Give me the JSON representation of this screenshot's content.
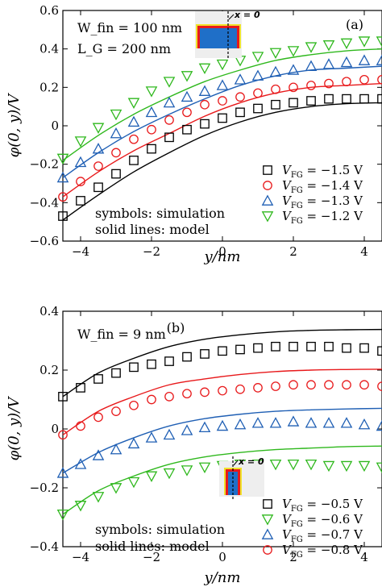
{
  "chart_data": [
    {
      "type": "line",
      "panel": "(a)",
      "annotations": {
        "line1": "W_fin = 100 nm",
        "line2": "L_G = 200 nm",
        "inset": "x = 0",
        "note1": "symbols: simulation",
        "note2": "solid lines: model"
      },
      "xlabel": "y/nm",
      "ylabel": "φ(0, y)/V",
      "xlim": [
        -4.5,
        4.5
      ],
      "ylim": [
        -0.6,
        0.6
      ],
      "xticks": [
        "−4",
        "−2",
        "0",
        "2",
        "4"
      ],
      "yticks": [
        "−0.6",
        "−0.4",
        "−0.2",
        "0",
        "0.2",
        "0.4",
        "0.6"
      ],
      "xtick_values": [
        -4,
        -2,
        0,
        2,
        4
      ],
      "ytick_values": [
        -0.6,
        -0.4,
        -0.2,
        0,
        0.2,
        0.4,
        0.6
      ],
      "series": [
        {
          "name": "V_FG = −1.5 V",
          "color": "#000000",
          "marker": "square",
          "model_y": [
            -0.49,
            -0.36,
            -0.24,
            -0.14,
            -0.05,
            0.02,
            0.07,
            0.1,
            0.115,
            0.12
          ],
          "sim_x": [
            -4.5,
            -4,
            -3.5,
            -3,
            -2.5,
            -2,
            -1.5,
            -1,
            -0.5,
            0,
            0.5,
            1,
            1.5,
            2,
            2.5,
            3,
            3.5,
            4,
            4.5
          ],
          "sim_y": [
            -0.47,
            -0.39,
            -0.32,
            -0.25,
            -0.18,
            -0.12,
            -0.06,
            -0.02,
            0.01,
            0.04,
            0.07,
            0.09,
            0.11,
            0.12,
            0.13,
            0.14,
            0.14,
            0.14,
            0.14
          ]
        },
        {
          "name": "V_FG = −1.4 V",
          "color": "#e8191b",
          "marker": "circle",
          "model_y": [
            -0.37,
            -0.24,
            -0.13,
            -0.04,
            0.05,
            0.12,
            0.17,
            0.2,
            0.21,
            0.22
          ],
          "sim_x": [
            -4.5,
            -4,
            -3.5,
            -3,
            -2.5,
            -2,
            -1.5,
            -1,
            -0.5,
            0,
            0.5,
            1,
            1.5,
            2,
            2.5,
            3,
            3.5,
            4,
            4.5
          ],
          "sim_y": [
            -0.37,
            -0.29,
            -0.21,
            -0.14,
            -0.07,
            -0.02,
            0.03,
            0.07,
            0.11,
            0.13,
            0.15,
            0.17,
            0.19,
            0.2,
            0.21,
            0.22,
            0.23,
            0.24,
            0.24
          ]
        },
        {
          "name": "V_FG = −1.3 V",
          "color": "#1f5fb4",
          "marker": "triangle-up",
          "model_y": [
            -0.27,
            -0.14,
            -0.03,
            0.06,
            0.14,
            0.21,
            0.26,
            0.29,
            0.3,
            0.31
          ],
          "sim_x": [
            -4.5,
            -4,
            -3.5,
            -3,
            -2.5,
            -2,
            -1.5,
            -1,
            -0.5,
            0,
            0.5,
            1,
            1.5,
            2,
            2.5,
            3,
            3.5,
            4,
            4.5
          ],
          "sim_y": [
            -0.27,
            -0.19,
            -0.12,
            -0.04,
            0.02,
            0.07,
            0.12,
            0.15,
            0.18,
            0.21,
            0.24,
            0.26,
            0.28,
            0.29,
            0.31,
            0.32,
            0.33,
            0.34,
            0.34
          ]
        },
        {
          "name": "V_FG = −1.2 V",
          "color": "#2fb81d",
          "marker": "triangle-down",
          "model_y": [
            -0.18,
            -0.05,
            0.06,
            0.15,
            0.23,
            0.29,
            0.34,
            0.37,
            0.39,
            0.4
          ],
          "sim_x": [
            -4.5,
            -4,
            -3.5,
            -3,
            -2.5,
            -2,
            -1.5,
            -1,
            -0.5,
            0,
            0.5,
            1,
            1.5,
            2,
            2.5,
            3,
            3.5,
            4,
            4.5
          ],
          "sim_y": [
            -0.17,
            -0.08,
            -0.01,
            0.06,
            0.12,
            0.18,
            0.23,
            0.26,
            0.3,
            0.32,
            0.34,
            0.36,
            0.38,
            0.39,
            0.41,
            0.42,
            0.43,
            0.44,
            0.44
          ]
        }
      ],
      "model_x": [
        -4.5,
        -3.5,
        -2.5,
        -1.5,
        -0.5,
        0.5,
        1.5,
        2.5,
        3.5,
        4.5
      ]
    },
    {
      "type": "line",
      "panel": "(b)",
      "annotations": {
        "line1": "W_fin = 9 nm",
        "inset": "x = 0",
        "note1": "symbols: simulation",
        "note2": "solid lines: model"
      },
      "xlabel": "y/nm",
      "ylabel": "φ(0, y)/V",
      "xlim": [
        -4.5,
        4.5
      ],
      "ylim": [
        -0.4,
        0.4
      ],
      "xticks": [
        "−4",
        "−2",
        "0",
        "2",
        "4"
      ],
      "yticks": [
        "−0.4",
        "−0.2",
        "0",
        "0.2",
        "0.4"
      ],
      "xtick_values": [
        -4,
        -2,
        0,
        2,
        4
      ],
      "ytick_values": [
        -0.4,
        -0.2,
        0,
        0.2,
        0.4
      ],
      "series": [
        {
          "name": "V_FG = −0.5 V",
          "color": "#000000",
          "marker": "square",
          "model_y": [
            0.11,
            0.19,
            0.24,
            0.28,
            0.305,
            0.32,
            0.33,
            0.335,
            0.337,
            0.338
          ],
          "sim_x": [
            -4.5,
            -4,
            -3.5,
            -3,
            -2.5,
            -2,
            -1.5,
            -1,
            -0.5,
            0,
            0.5,
            1,
            1.5,
            2,
            2.5,
            3,
            3.5,
            4,
            4.5
          ],
          "sim_y": [
            0.11,
            0.14,
            0.17,
            0.19,
            0.21,
            0.22,
            0.23,
            0.245,
            0.255,
            0.265,
            0.27,
            0.275,
            0.28,
            0.28,
            0.28,
            0.28,
            0.275,
            0.275,
            0.265
          ]
        },
        {
          "name": "V_FG = −0.6 V",
          "color": "#2fb81d",
          "marker": "triangle-down",
          "model_y": [
            -0.29,
            -0.21,
            -0.16,
            -0.12,
            -0.095,
            -0.08,
            -0.07,
            -0.065,
            -0.06,
            -0.058
          ],
          "sim_x": [
            -4.5,
            -4,
            -3.5,
            -3,
            -2.5,
            -2,
            -1.5,
            -1,
            -0.5,
            0,
            0.5,
            1,
            1.5,
            2,
            2.5,
            3,
            3.5,
            4,
            4.5
          ],
          "sim_y": [
            -0.29,
            -0.26,
            -0.23,
            -0.2,
            -0.18,
            -0.16,
            -0.15,
            -0.14,
            -0.13,
            -0.125,
            -0.12,
            -0.12,
            -0.12,
            -0.12,
            -0.12,
            -0.125,
            -0.125,
            -0.125,
            -0.13
          ]
        },
        {
          "name": "V_FG = −0.7 V",
          "color": "#1f5fb4",
          "marker": "triangle-up",
          "model_y": [
            -0.15,
            -0.08,
            -0.03,
            0.01,
            0.035,
            0.05,
            0.06,
            0.065,
            0.068,
            0.07
          ],
          "sim_x": [
            -4.5,
            -4,
            -3.5,
            -3,
            -2.5,
            -2,
            -1.5,
            -1,
            -0.5,
            0,
            0.5,
            1,
            1.5,
            2,
            2.5,
            3,
            3.5,
            4,
            4.5
          ],
          "sim_y": [
            -0.15,
            -0.12,
            -0.09,
            -0.07,
            -0.05,
            -0.03,
            -0.02,
            -0.005,
            0.005,
            0.01,
            0.015,
            0.02,
            0.02,
            0.025,
            0.02,
            0.02,
            0.02,
            0.015,
            0.01
          ]
        },
        {
          "name": "V_FG = −0.8 V",
          "color": "#e8191b",
          "marker": "circle",
          "model_y": [
            -0.02,
            0.06,
            0.11,
            0.15,
            0.17,
            0.185,
            0.195,
            0.2,
            0.202,
            0.203
          ],
          "sim_x": [
            -4.5,
            -4,
            -3.5,
            -3,
            -2.5,
            -2,
            -1.5,
            -1,
            -0.5,
            0,
            0.5,
            1,
            1.5,
            2,
            2.5,
            3,
            3.5,
            4,
            4.5
          ],
          "sim_y": [
            -0.02,
            0.01,
            0.04,
            0.06,
            0.08,
            0.1,
            0.11,
            0.12,
            0.125,
            0.13,
            0.135,
            0.14,
            0.145,
            0.15,
            0.15,
            0.15,
            0.15,
            0.15,
            0.145
          ]
        }
      ],
      "model_x": [
        -4.5,
        -3.5,
        -2.5,
        -1.5,
        -0.5,
        0.5,
        1.5,
        2.5,
        3.5,
        4.5
      ]
    }
  ]
}
